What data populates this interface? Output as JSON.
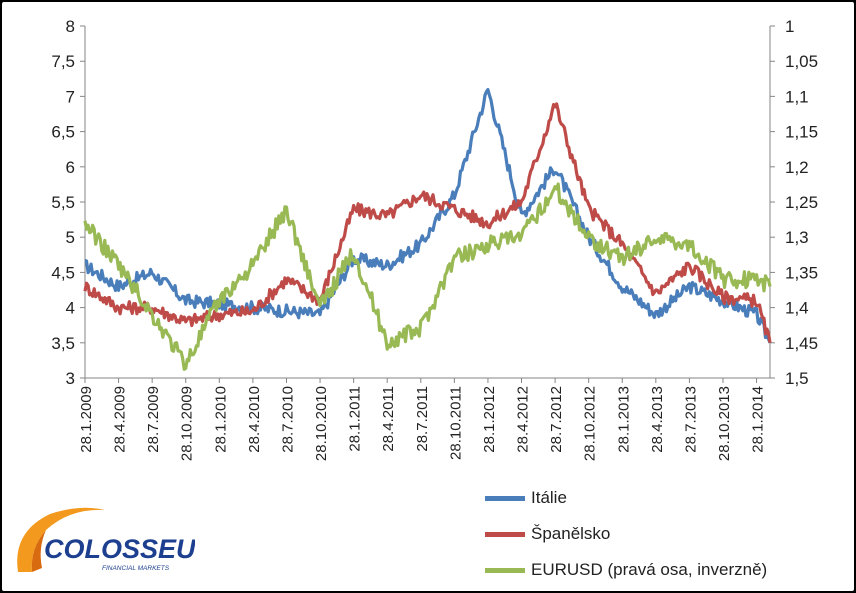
{
  "chart_data": {
    "type": "line",
    "left_axis": {
      "ylim": [
        3,
        8
      ],
      "ticks": [
        "3",
        "3,5",
        "4",
        "4,5",
        "5",
        "5,5",
        "6",
        "6,5",
        "7",
        "7,5",
        "8"
      ]
    },
    "right_axis": {
      "ylim": [
        1.5,
        1.0
      ],
      "inverted": true,
      "ticks": [
        "1",
        "1,05",
        "1,1",
        "1,15",
        "1,2",
        "1,25",
        "1,3",
        "1,35",
        "1,4",
        "1,45",
        "1,5"
      ]
    },
    "x_ticks": [
      "28.1.2009",
      "28.4.2009",
      "28.7.2009",
      "28.10.2009",
      "28.1.2010",
      "28.4.2010",
      "28.7.2010",
      "28.10.2010",
      "28.1.2011",
      "28.4.2011",
      "28.7.2011",
      "28.10.2011",
      "28.1.2012",
      "28.4.2012",
      "28.7.2012",
      "28.10.2012",
      "28.1.2013",
      "28.4.2013",
      "28.7.2013",
      "28.10.2013",
      "28.1.2014"
    ],
    "grid": false,
    "legend_position": "bottom-right",
    "series": [
      {
        "name": "Itálie",
        "axis": "left",
        "color": "#4a7ebb",
        "x": [
          0,
          1,
          2,
          3,
          4,
          5,
          6,
          7,
          8,
          9,
          10,
          11,
          12,
          13,
          14,
          15,
          16,
          17,
          18,
          19,
          20,
          20.4
        ],
        "values": [
          4.6,
          4.3,
          4.5,
          4.1,
          4.05,
          4.0,
          3.95,
          3.9,
          4.7,
          4.6,
          4.9,
          5.6,
          7.1,
          5.3,
          6.0,
          5.0,
          4.3,
          3.9,
          4.3,
          4.1,
          3.9,
          3.5
        ]
      },
      {
        "name": "Španělsko",
        "axis": "left",
        "color": "#be4b48",
        "x": [
          0,
          1,
          2,
          3,
          4,
          5,
          6,
          7,
          8,
          9,
          10,
          11,
          12,
          13,
          14,
          15,
          16,
          17,
          18,
          19,
          20,
          20.4
        ],
        "values": [
          4.3,
          4.0,
          4.0,
          3.8,
          3.9,
          3.95,
          4.4,
          4.1,
          5.4,
          5.3,
          5.6,
          5.4,
          5.2,
          5.5,
          6.9,
          5.4,
          4.9,
          4.2,
          4.6,
          4.15,
          4.1,
          3.5
        ]
      },
      {
        "name": "EURUSD (pravá osa, inverzně)",
        "axis": "right",
        "color": "#98b954",
        "x": [
          0,
          1,
          2,
          3,
          4,
          5,
          6,
          7,
          8,
          9,
          10,
          11,
          12,
          13,
          14,
          15,
          16,
          17,
          18,
          19,
          20,
          20.4
        ],
        "values": [
          1.28,
          1.34,
          1.41,
          1.48,
          1.39,
          1.34,
          1.26,
          1.4,
          1.32,
          1.45,
          1.43,
          1.33,
          1.31,
          1.3,
          1.23,
          1.3,
          1.33,
          1.3,
          1.31,
          1.36,
          1.36,
          1.37
        ]
      }
    ]
  },
  "logo": {
    "name": "COLOSSEUM",
    "tagline": "FINANCIAL MARKETS"
  }
}
